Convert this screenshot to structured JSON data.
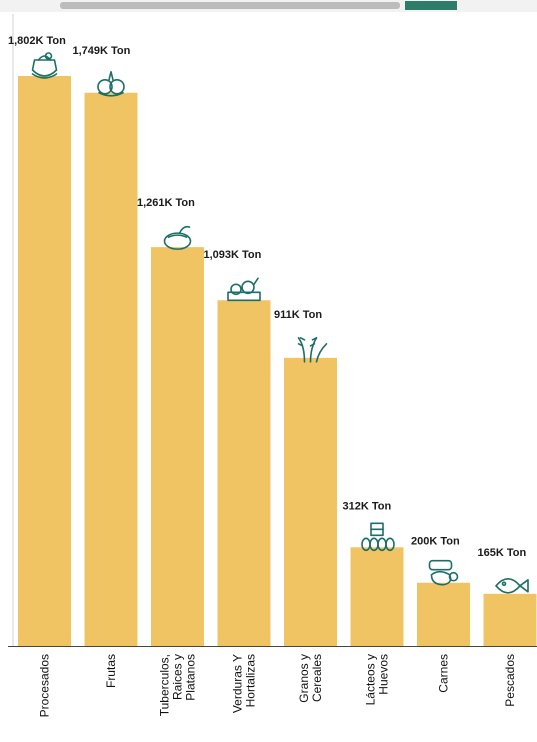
{
  "chart_data": {
    "type": "bar",
    "categories": [
      [
        "Procesados"
      ],
      [
        "Frutas"
      ],
      [
        "Tuberculos,",
        "Raices y",
        "Platanos"
      ],
      [
        "Verduras Y",
        "Hortalizas"
      ],
      [
        "Granos y",
        "Cereales"
      ],
      [
        "Lácteos y",
        "Huevos"
      ],
      [
        "Carnes"
      ],
      [
        "Pescados"
      ]
    ],
    "values": [
      1802,
      1749,
      1261,
      1093,
      911,
      312,
      200,
      165
    ],
    "value_labels": [
      "1,802K Ton",
      "1,749K Ton",
      "1,261K Ton",
      "1,093K Ton",
      "911K Ton",
      "312K Ton",
      "200K Ton",
      "165K Ton"
    ],
    "unit": "K Ton",
    "icons": [
      "processed-food-icon",
      "fruits-icon",
      "tubers-icon",
      "vegetables-icon",
      "grains-icon",
      "dairy-eggs-icon",
      "meat-icon",
      "fish-icon"
    ],
    "ylim": [
      0,
      1802
    ],
    "bar_color": "#f1c463",
    "icon_color": "#1b6f66",
    "grid": false,
    "legend": "none"
  }
}
